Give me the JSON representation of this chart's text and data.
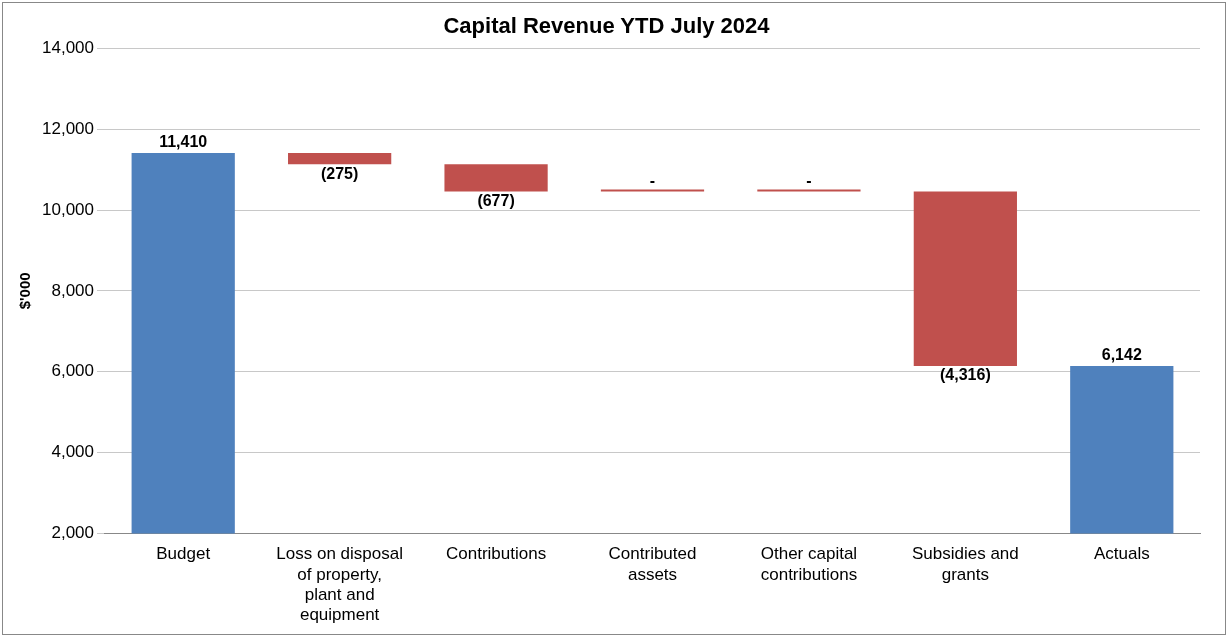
{
  "chart_data": {
    "type": "bar",
    "title": "Capital Revenue YTD July 2024",
    "ylabel": "$'000",
    "categories": [
      "Budget",
      "Loss on disposal of property, plant and equipment",
      "Contributions",
      "Contributed assets",
      "Other capital contributions",
      "Subsidies and grants",
      "Actuals"
    ],
    "values": [
      11410,
      -275,
      -677,
      0,
      0,
      -4316,
      6142
    ],
    "base": [
      null,
      11410,
      11135,
      10458,
      10458,
      10458,
      null
    ],
    "colors": [
      "#4f81bd",
      "#c0504d",
      "#c0504d",
      "#c0504d",
      "#c0504d",
      "#c0504d",
      "#4f81bd"
    ],
    "value_labels": [
      "11,410",
      "(275)",
      "(677)",
      "-",
      "-",
      "(4,316)",
      "6,142"
    ],
    "ylim": [
      2000,
      14000
    ],
    "yticks": [
      {
        "value": 2000,
        "label": "2,000"
      },
      {
        "value": 4000,
        "label": "4,000"
      },
      {
        "value": 6000,
        "label": "6,000"
      },
      {
        "value": 8000,
        "label": "8,000"
      },
      {
        "value": 10000,
        "label": "10,000"
      },
      {
        "value": 12000,
        "label": "12,000"
      },
      {
        "value": 14000,
        "label": "14,000"
      }
    ],
    "grid": "y",
    "legend": false
  }
}
